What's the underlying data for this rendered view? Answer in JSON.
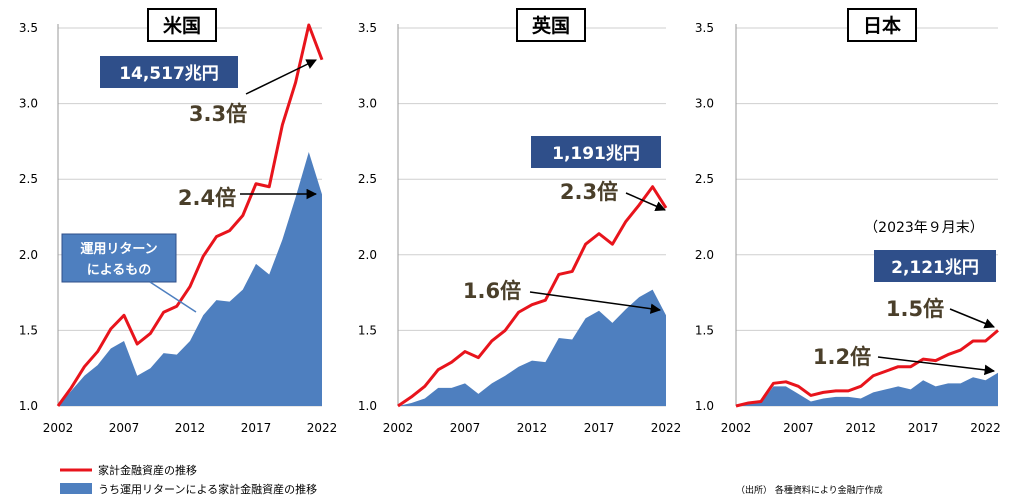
{
  "colors": {
    "line": "#e8141c",
    "area": "#4e7fbf",
    "label_box": "#2f4f8a",
    "multiplier_text": "#4a3f2a"
  },
  "chart_data": [
    {
      "type": "area",
      "title": "米国",
      "x": [
        2002,
        2003,
        2004,
        2005,
        2006,
        2007,
        2008,
        2009,
        2010,
        2011,
        2012,
        2013,
        2014,
        2015,
        2016,
        2017,
        2018,
        2019,
        2020,
        2021,
        2022
      ],
      "ylim": [
        1.0,
        3.5
      ],
      "yticks": [
        "1.0",
        "1.5",
        "2.0",
        "2.5",
        "3.0",
        "3.5"
      ],
      "xticks": [
        "2002",
        "2007",
        "2012",
        "2017",
        "2022"
      ],
      "series": [
        {
          "name": "家計金融資産の推移",
          "kind": "line",
          "values": [
            1.0,
            1.12,
            1.26,
            1.36,
            1.51,
            1.6,
            1.41,
            1.48,
            1.62,
            1.66,
            1.79,
            1.99,
            2.12,
            2.16,
            2.26,
            2.47,
            2.45,
            2.86,
            3.14,
            3.52,
            3.29
          ]
        },
        {
          "name": "うち運用リターンによる家計金融資産の推移",
          "kind": "area",
          "values": [
            1.0,
            1.1,
            1.2,
            1.27,
            1.38,
            1.43,
            1.2,
            1.25,
            1.35,
            1.34,
            1.43,
            1.6,
            1.7,
            1.69,
            1.77,
            1.94,
            1.87,
            2.1,
            2.38,
            2.68,
            2.4
          ]
        }
      ],
      "annotations": {
        "amount": "14,517兆円",
        "line_multiplier": "3.3倍",
        "area_multiplier": "2.4倍",
        "callout": [
          "運用リターン",
          "によるもの"
        ]
      }
    },
    {
      "type": "area",
      "title": "英国",
      "x": [
        2002,
        2003,
        2004,
        2005,
        2006,
        2007,
        2008,
        2009,
        2010,
        2011,
        2012,
        2013,
        2014,
        2015,
        2016,
        2017,
        2018,
        2019,
        2020,
        2021,
        2022
      ],
      "ylim": [
        1.0,
        3.5
      ],
      "yticks": [
        "1.0",
        "1.5",
        "2.0",
        "2.5",
        "3.0",
        "3.5"
      ],
      "xticks": [
        "2002",
        "2007",
        "2012",
        "2017",
        "2022"
      ],
      "series": [
        {
          "name": "家計金融資産の推移",
          "kind": "line",
          "values": [
            1.0,
            1.06,
            1.13,
            1.24,
            1.29,
            1.36,
            1.32,
            1.43,
            1.5,
            1.62,
            1.67,
            1.7,
            1.87,
            1.89,
            2.07,
            2.14,
            2.07,
            2.22,
            2.33,
            2.45,
            2.31
          ]
        },
        {
          "name": "うち運用リターンによる家計金融資産の推移",
          "kind": "area",
          "values": [
            1.0,
            1.02,
            1.05,
            1.12,
            1.12,
            1.15,
            1.08,
            1.15,
            1.2,
            1.26,
            1.3,
            1.29,
            1.45,
            1.44,
            1.58,
            1.63,
            1.55,
            1.64,
            1.72,
            1.77,
            1.6
          ]
        }
      ],
      "annotations": {
        "amount": "1,191兆円",
        "line_multiplier": "2.3倍",
        "area_multiplier": "1.6倍"
      }
    },
    {
      "type": "area",
      "title": "日本",
      "x": [
        2002,
        2003,
        2004,
        2005,
        2006,
        2007,
        2008,
        2009,
        2010,
        2011,
        2012,
        2013,
        2014,
        2015,
        2016,
        2017,
        2018,
        2019,
        2020,
        2021,
        2022,
        2023
      ],
      "ylim": [
        1.0,
        3.5
      ],
      "yticks": [
        "1.0",
        "1.5",
        "2.0",
        "2.5",
        "3.0",
        "3.5"
      ],
      "xticks": [
        "2002",
        "2007",
        "2012",
        "2017",
        "2022"
      ],
      "series": [
        {
          "name": "家計金融資産の推移",
          "kind": "line",
          "values": [
            1.0,
            1.02,
            1.03,
            1.15,
            1.16,
            1.13,
            1.07,
            1.09,
            1.1,
            1.1,
            1.13,
            1.2,
            1.23,
            1.26,
            1.26,
            1.31,
            1.3,
            1.34,
            1.37,
            1.43,
            1.43,
            1.5
          ]
        },
        {
          "name": "うち運用リターンによる家計金融資産の推移",
          "kind": "area",
          "values": [
            1.0,
            1.02,
            1.02,
            1.13,
            1.13,
            1.08,
            1.03,
            1.05,
            1.06,
            1.06,
            1.05,
            1.09,
            1.11,
            1.13,
            1.11,
            1.17,
            1.13,
            1.15,
            1.15,
            1.19,
            1.17,
            1.22
          ]
        }
      ],
      "annotations": {
        "amount": "2,121兆円",
        "line_multiplier": "1.5倍",
        "area_multiplier": "1.2倍",
        "date_note": "（2023年９月末）"
      }
    }
  ],
  "legend": {
    "line_label": "家計金融資産の推移",
    "area_label": "うち運用リターンによる家計金融資産の推移"
  },
  "source": "（出所） 各種資料により金融庁作成"
}
